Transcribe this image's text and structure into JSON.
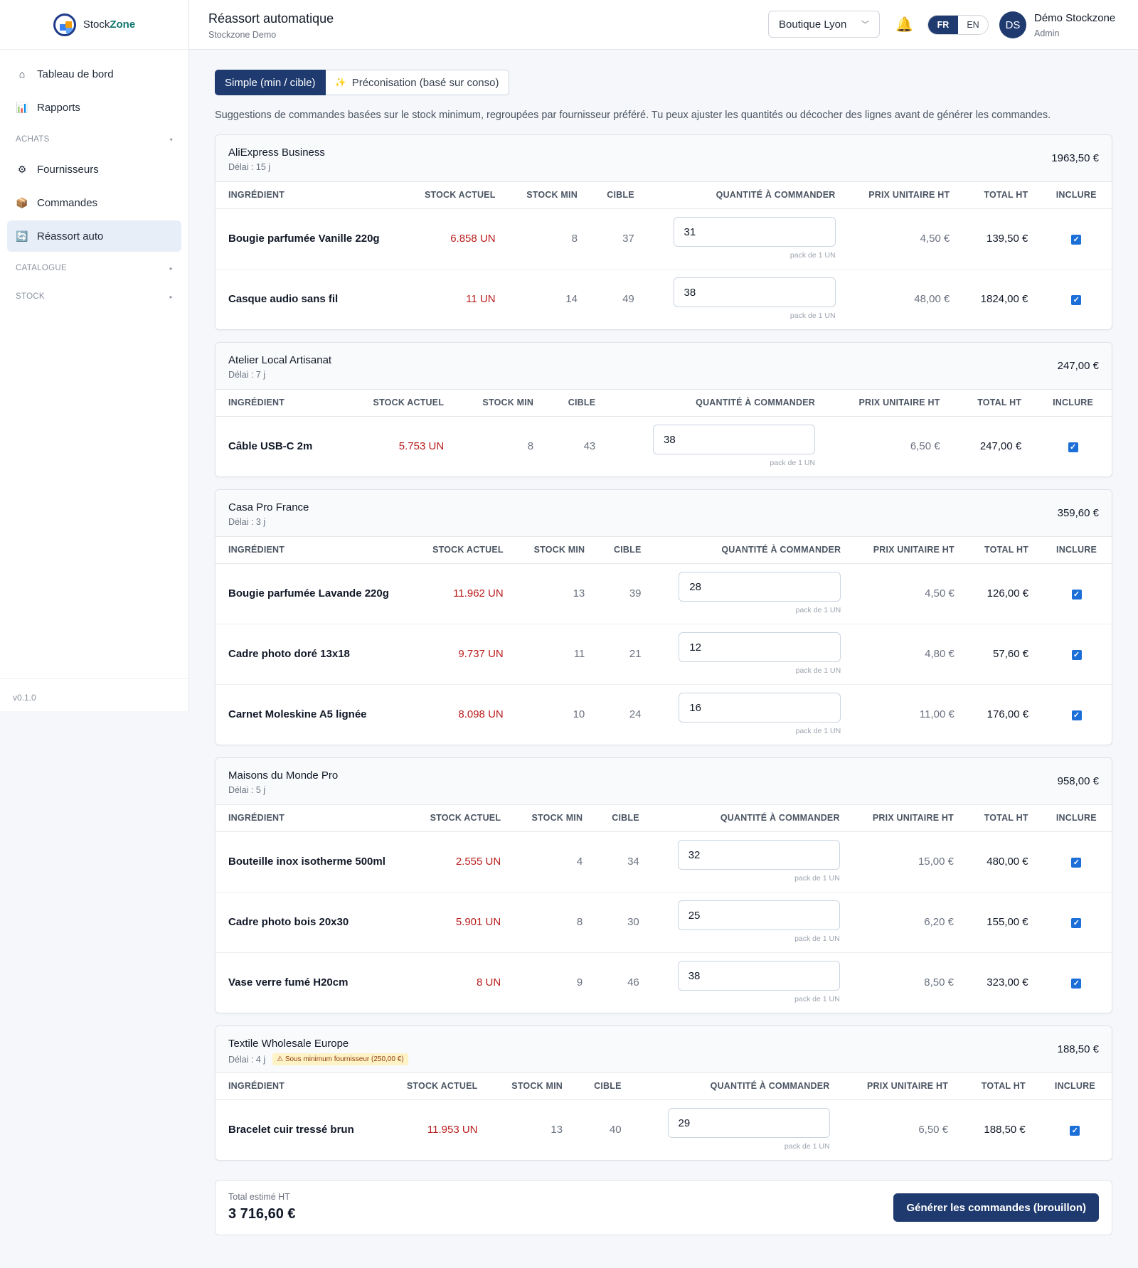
{
  "app": {
    "logo_prefix": "Stock",
    "logo_suffix": "Zone",
    "version": "v0.1.0"
  },
  "sidebar": {
    "items": [
      {
        "label": "Tableau de bord",
        "icon": "home-icon",
        "glyph": "⌂"
      },
      {
        "label": "Rapports",
        "icon": "chart-icon",
        "glyph": "📊"
      }
    ],
    "sections": [
      {
        "label": "ACHATS",
        "items": [
          {
            "label": "Fournisseurs",
            "icon": "gear-icon",
            "glyph": "⚙"
          },
          {
            "label": "Commandes",
            "icon": "package-icon",
            "glyph": "📦"
          },
          {
            "label": "Réassort auto",
            "icon": "refresh-icon",
            "glyph": "🔄",
            "active": true
          }
        ]
      },
      {
        "label": "CATALOGUE"
      },
      {
        "label": "STOCK"
      }
    ]
  },
  "header": {
    "title": "Réassort automatique",
    "subtitle": "Stockzone Demo",
    "store": "Boutique Lyon",
    "lang_fr": "FR",
    "lang_en": "EN",
    "avatar": "DS",
    "user_name": "Démo Stockzone",
    "user_role": "Admin"
  },
  "modes": {
    "simple": "Simple (min / cible)",
    "advanced": "Préconisation (basé sur conso)",
    "advanced_glyph": "✨"
  },
  "intro": "Suggestions de commandes basées sur le stock minimum, regroupées par fournisseur préféré. Tu peux ajuster les quantités ou décocher des lignes avant de générer les commandes.",
  "columns": {
    "ingredient": "INGRÉDIENT",
    "stock": "STOCK ACTUEL",
    "min": "STOCK MIN",
    "target": "CIBLE",
    "qty": "QUANTITÉ À COMMANDER",
    "price": "PRIX UNITAIRE HT",
    "total": "TOTAL HT",
    "include": "INCLURE"
  },
  "pack_label": "pack de 1 UN",
  "suppliers": [
    {
      "name": "AliExpress Business",
      "delay": "Délai : 15 j",
      "total": "1963,50 €",
      "warning": "",
      "rows": [
        {
          "name": "Bougie parfumée Vanille 220g",
          "stock": "6.858 UN",
          "min": "8",
          "target": "37",
          "qty": "31",
          "price": "4,50 €",
          "total": "139,50 €"
        },
        {
          "name": "Casque audio sans fil",
          "stock": "11 UN",
          "min": "14",
          "target": "49",
          "qty": "38",
          "price": "48,00 €",
          "total": "1824,00 €"
        }
      ]
    },
    {
      "name": "Atelier Local Artisanat",
      "delay": "Délai : 7 j",
      "total": "247,00 €",
      "warning": "",
      "rows": [
        {
          "name": "Câble USB-C 2m",
          "stock": "5.753 UN",
          "min": "8",
          "target": "43",
          "qty": "38",
          "price": "6,50 €",
          "total": "247,00 €"
        }
      ]
    },
    {
      "name": "Casa Pro France",
      "delay": "Délai : 3 j",
      "total": "359,60 €",
      "warning": "",
      "rows": [
        {
          "name": "Bougie parfumée Lavande 220g",
          "stock": "11.962 UN",
          "min": "13",
          "target": "39",
          "qty": "28",
          "price": "4,50 €",
          "total": "126,00 €"
        },
        {
          "name": "Cadre photo doré 13x18",
          "stock": "9.737 UN",
          "min": "11",
          "target": "21",
          "qty": "12",
          "price": "4,80 €",
          "total": "57,60 €"
        },
        {
          "name": "Carnet Moleskine A5 lignée",
          "stock": "8.098 UN",
          "min": "10",
          "target": "24",
          "qty": "16",
          "price": "11,00 €",
          "total": "176,00 €"
        }
      ]
    },
    {
      "name": "Maisons du Monde Pro",
      "delay": "Délai : 5 j",
      "total": "958,00 €",
      "warning": "",
      "rows": [
        {
          "name": "Bouteille inox isotherme 500ml",
          "stock": "2.555 UN",
          "min": "4",
          "target": "34",
          "qty": "32",
          "price": "15,00 €",
          "total": "480,00 €"
        },
        {
          "name": "Cadre photo bois 20x30",
          "stock": "5.901 UN",
          "min": "8",
          "target": "30",
          "qty": "25",
          "price": "6,20 €",
          "total": "155,00 €"
        },
        {
          "name": "Vase verre fumé H20cm",
          "stock": "8 UN",
          "min": "9",
          "target": "46",
          "qty": "38",
          "price": "8,50 €",
          "total": "323,00 €"
        }
      ]
    },
    {
      "name": "Textile Wholesale Europe",
      "delay": "Délai : 4 j",
      "total": "188,50 €",
      "warning": "⚠ Sous minimum fournisseur (250,00 €)",
      "rows": [
        {
          "name": "Bracelet cuir tressé brun",
          "stock": "11.953 UN",
          "min": "13",
          "target": "40",
          "qty": "29",
          "price": "6,50 €",
          "total": "188,50 €"
        }
      ]
    }
  ],
  "footer": {
    "label": "Total estimé HT",
    "total": "3 716,60 €",
    "button": "Générer les commandes (brouillon)"
  },
  "colors": {
    "primary": "#1e3a6f",
    "stock_alert": "#b91c1c",
    "checkbox": "#1d6fd8",
    "warning_bg": "#fef3c7"
  }
}
